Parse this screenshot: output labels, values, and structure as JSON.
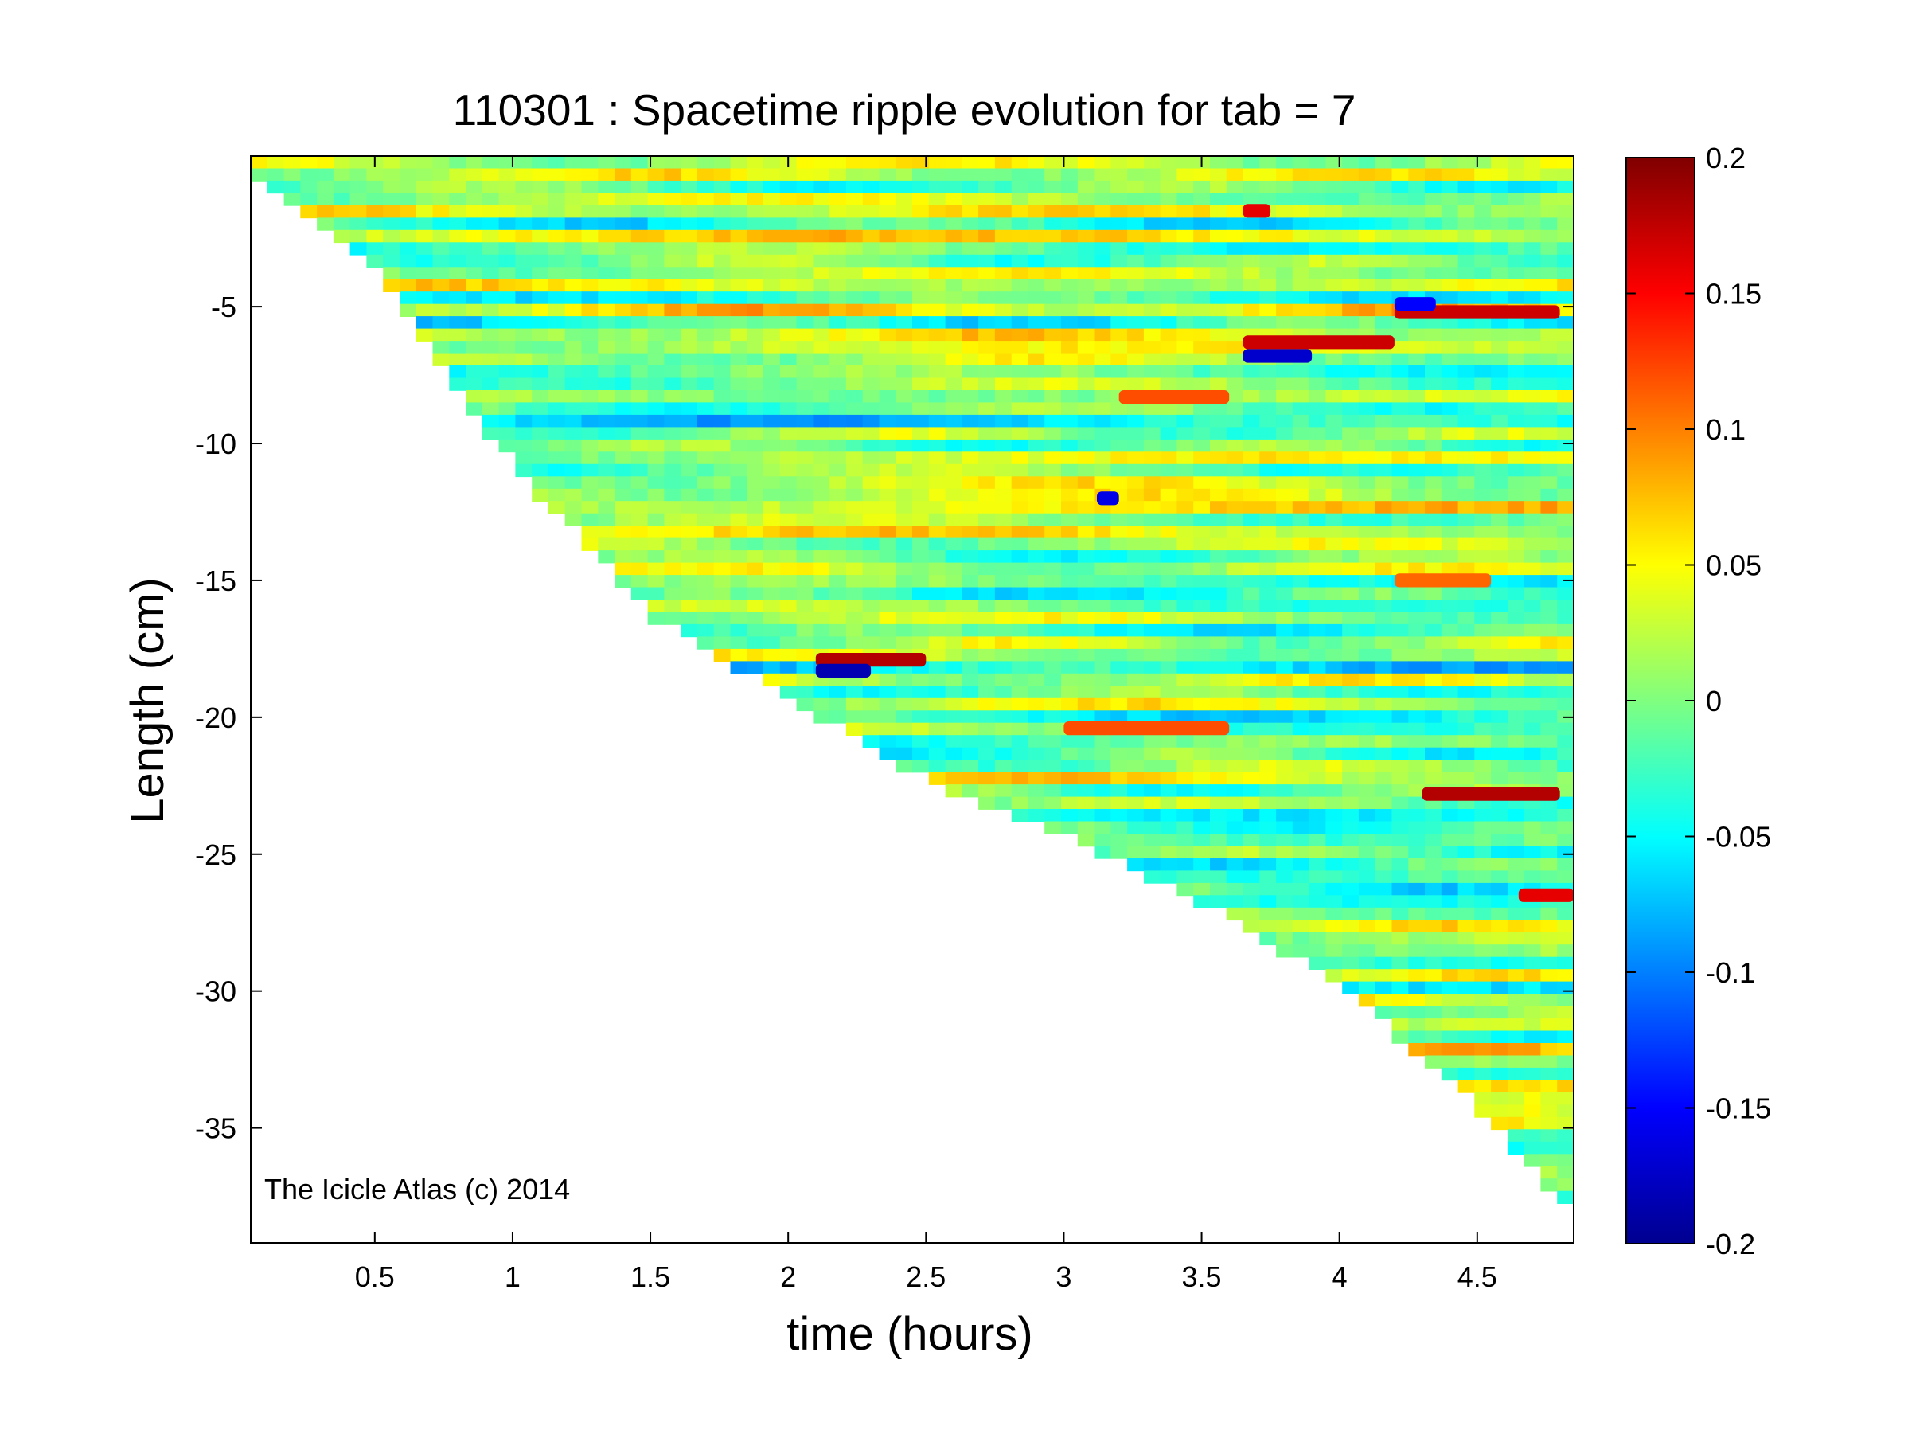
{
  "chart_data": {
    "type": "heatmap",
    "title": "110301 : Spacetime ripple evolution for tab = 7",
    "xlabel": "time (hours)",
    "ylabel": "Length (cm)",
    "xlim": [
      0.05,
      4.85
    ],
    "ylim": [
      -39.2,
      0.5
    ],
    "x_ticks": [
      0.5,
      1,
      1.5,
      2,
      2.5,
      3,
      3.5,
      4,
      4.5
    ],
    "x_tick_labels": [
      "0.5",
      "1",
      "1.5",
      "2",
      "2.5",
      "3",
      "3.5",
      "4",
      "4.5"
    ],
    "y_ticks": [
      -5,
      -10,
      -15,
      -20,
      -25,
      -30,
      -35
    ],
    "y_tick_labels": [
      "-5",
      "-10",
      "-15",
      "-20",
      "-25",
      "-30",
      "-35"
    ],
    "colormap": "jet",
    "clim": [
      -0.2,
      0.2
    ],
    "colorbar_ticks": [
      0.2,
      0.15,
      0.1,
      0.05,
      0,
      -0.05,
      -0.1,
      -0.15,
      -0.2
    ],
    "colorbar_tick_labels": [
      "0.2",
      "0.15",
      "0.1",
      "0.05",
      "0",
      "-0.05",
      "-0.1",
      "-0.15",
      "-0.2"
    ],
    "annotation": "The Icicle Atlas (c) 2014",
    "data_boundary": {
      "description_values": "icicle tip length vs time",
      "time_hours": [
        0.05,
        0.5,
        1.0,
        1.5,
        2.0,
        2.5,
        3.0,
        3.5,
        4.0,
        4.5,
        4.85
      ],
      "min_length_cm": [
        -0.5,
        -4.0,
        -11.0,
        -16.5,
        -19.5,
        -22.5,
        -24.5,
        -27.0,
        -30.0,
        -34.5,
        -38.5
      ]
    },
    "notable_features": [
      {
        "time_hours": [
          2.1,
          2.5
        ],
        "length_cm": -17.9,
        "value": 0.18
      },
      {
        "time_hours": [
          2.1,
          2.3
        ],
        "length_cm": -18.3,
        "value": -0.18
      },
      {
        "time_hours": [
          3.65,
          4.2
        ],
        "length_cm": -6.3,
        "value": 0.17
      },
      {
        "time_hours": [
          3.65,
          3.9
        ],
        "length_cm": -6.8,
        "value": -0.17
      },
      {
        "time_hours": [
          4.2,
          4.8
        ],
        "length_cm": -5.2,
        "value": 0.17
      },
      {
        "time_hours": [
          4.2,
          4.35
        ],
        "length_cm": -4.9,
        "value": -0.15
      },
      {
        "time_hours": [
          4.3,
          4.8
        ],
        "length_cm": -22.8,
        "value": 0.18
      },
      {
        "time_hours": [
          4.65,
          4.85
        ],
        "length_cm": -26.5,
        "value": 0.16
      },
      {
        "time_hours": [
          3.12,
          3.2
        ],
        "length_cm": -12.0,
        "value": -0.16
      },
      {
        "time_hours": [
          3.2,
          3.6
        ],
        "length_cm": -8.3,
        "value": 0.12
      },
      {
        "time_hours": [
          4.2,
          4.55
        ],
        "length_cm": -15.0,
        "value": 0.11
      },
      {
        "time_hours": [
          3.0,
          3.6
        ],
        "length_cm": -20.4,
        "value": 0.12
      },
      {
        "time_hours": [
          3.65,
          3.75
        ],
        "length_cm": -1.5,
        "value": 0.16
      }
    ]
  }
}
